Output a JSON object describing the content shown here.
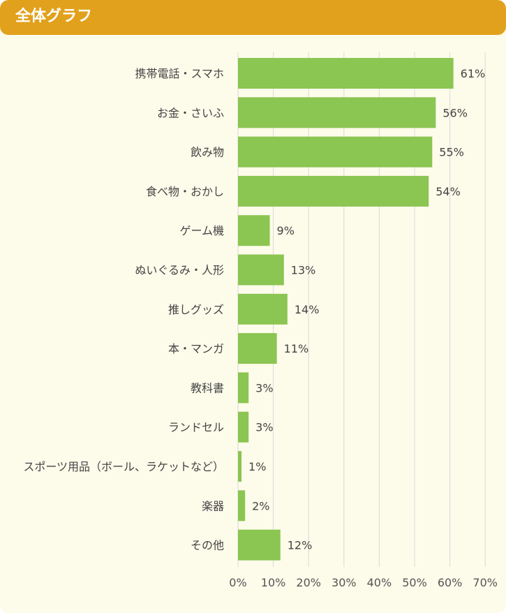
{
  "header": {
    "title": "全体グラフ"
  },
  "colors": {
    "header": "#e2a11c",
    "bar": "#8bc552",
    "grid": "#d9d9d9",
    "background": "#fdfbea"
  },
  "chart_data": {
    "type": "bar",
    "orientation": "horizontal",
    "title": "全体グラフ",
    "categories": [
      "携帯電話・スマホ",
      "お金・さいふ",
      "飲み物",
      "食べ物・おかし",
      "ゲーム機",
      "ぬいぐるみ・人形",
      "推しグッズ",
      "本・マンガ",
      "教科書",
      "ランドセル",
      "スポーツ用品（ボール、ラケットなど）",
      "楽器",
      "その他"
    ],
    "values": [
      61,
      56,
      55,
      54,
      9,
      13,
      14,
      11,
      3,
      3,
      1,
      2,
      12
    ],
    "value_labels": [
      "61%",
      "56%",
      "55%",
      "54%",
      "9%",
      "13%",
      "14%",
      "11%",
      "3%",
      "3%",
      "1%",
      "2%",
      "12%"
    ],
    "xlim": [
      0,
      70
    ],
    "xticks": [
      "0%",
      "10%",
      "20%",
      "30%",
      "40%",
      "50%",
      "60%",
      "70%"
    ],
    "grid": true
  }
}
